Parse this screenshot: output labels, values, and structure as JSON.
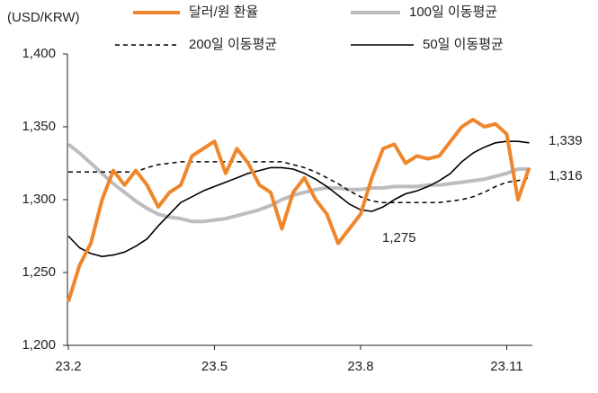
{
  "chart_data": {
    "type": "line",
    "y_label": "(USD/KRW)",
    "categories": [
      "23.2",
      null,
      null,
      null,
      null,
      null,
      null,
      null,
      null,
      null,
      null,
      null,
      null,
      "23.5",
      null,
      null,
      null,
      null,
      null,
      null,
      null,
      null,
      null,
      null,
      null,
      null,
      "23.8",
      null,
      null,
      null,
      null,
      null,
      null,
      null,
      null,
      null,
      null,
      null,
      null,
      "23.11",
      null,
      null
    ],
    "series": [
      {
        "name": "달러/원 환율",
        "color": "#f0862b",
        "style": "thick",
        "values": [
          1230,
          1255,
          1270,
          1300,
          1320,
          1310,
          1320,
          1310,
          1295,
          1305,
          1310,
          1330,
          1335,
          1340,
          1318,
          1335,
          1325,
          1310,
          1305,
          1280,
          1305,
          1315,
          1300,
          1290,
          1270,
          1280,
          1290,
          1315,
          1335,
          1338,
          1325,
          1330,
          1328,
          1330,
          1340,
          1350,
          1355,
          1350,
          1352,
          1345,
          1300,
          1322
        ]
      },
      {
        "name": "100일 이동평균",
        "color": "#bdbdbd",
        "style": "thick",
        "values": [
          1338,
          1332,
          1325,
          1318,
          1311,
          1305,
          1299,
          1294,
          1290,
          1288,
          1287,
          1285,
          1285,
          1286,
          1287,
          1289,
          1291,
          1293,
          1296,
          1300,
          1303,
          1305,
          1307,
          1308,
          1308,
          1307,
          1307,
          1308,
          1308,
          1309,
          1309,
          1309,
          1310,
          1310,
          1311,
          1312,
          1313,
          1314,
          1316,
          1318,
          1321,
          1321
        ]
      },
      {
        "name": "200일 이동평균",
        "color": "#000000",
        "style": "dashed",
        "values": [
          1319,
          1319,
          1319,
          1319,
          1319,
          1319,
          1319,
          1322,
          1324,
          1325,
          1326,
          1326,
          1326,
          1326,
          1326,
          1326,
          1326,
          1326,
          1326,
          1326,
          1324,
          1322,
          1319,
          1315,
          1311,
          1306,
          1302,
          1299,
          1298,
          1298,
          1298,
          1298,
          1298,
          1298,
          1299,
          1300,
          1302,
          1305,
          1309,
          1312,
          1313,
          1315
        ]
      },
      {
        "name": "50일 이동평균",
        "color": "#000000",
        "style": "thin",
        "values": [
          1275,
          1267,
          1263,
          1261,
          1262,
          1264,
          1268,
          1273,
          1282,
          1290,
          1298,
          1302,
          1306,
          1309,
          1312,
          1315,
          1318,
          1320,
          1322,
          1322,
          1321,
          1318,
          1314,
          1309,
          1303,
          1297,
          1293,
          1292,
          1295,
          1300,
          1304,
          1306,
          1309,
          1313,
          1318,
          1326,
          1332,
          1336,
          1339,
          1340,
          1340,
          1339
        ]
      }
    ],
    "ylim": [
      1200,
      1400
    ],
    "yticks": [
      {
        "value": 1200,
        "label": "1,200"
      },
      {
        "value": 1250,
        "label": "1,250"
      },
      {
        "value": 1300,
        "label": "1,300"
      },
      {
        "value": 1350,
        "label": "1,350"
      },
      {
        "value": 1400,
        "label": "1,400"
      }
    ],
    "annotations": [
      "1,339",
      "1,316",
      "1,275"
    ]
  }
}
